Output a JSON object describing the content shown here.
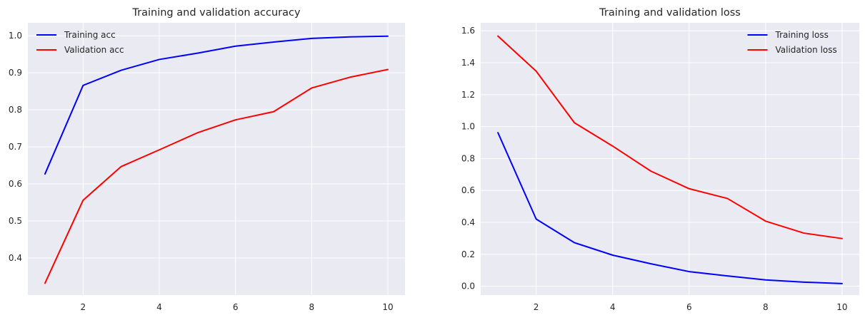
{
  "chart_data": [
    {
      "type": "line",
      "title": "Training and validation accuracy",
      "xlabel": "",
      "ylabel": "",
      "x": [
        1,
        2,
        3,
        4,
        5,
        6,
        7,
        8,
        9,
        10
      ],
      "xlim": [
        0.55,
        10.45
      ],
      "ylim": [
        0.3,
        1.035
      ],
      "xticks": [
        2,
        4,
        6,
        8,
        10
      ],
      "yticks": [
        0.4,
        0.5,
        0.6,
        0.7,
        0.8,
        0.9,
        1.0
      ],
      "ytick_labels": [
        "0.4",
        "0.5",
        "0.6",
        "0.7",
        "0.8",
        "0.9",
        "1.0"
      ],
      "grid": true,
      "legend_position": "top-left",
      "series": [
        {
          "name": "Training acc",
          "color": "#0000ff",
          "values": [
            0.627,
            0.866,
            0.907,
            0.936,
            0.953,
            0.972,
            0.983,
            0.993,
            0.997,
            0.999
          ]
        },
        {
          "name": "Validation acc",
          "color": "#ff0000",
          "values": [
            0.332,
            0.556,
            0.647,
            0.692,
            0.738,
            0.773,
            0.795,
            0.859,
            0.888,
            0.909
          ]
        }
      ]
    },
    {
      "type": "line",
      "title": "Training and validation loss",
      "xlabel": "",
      "ylabel": "",
      "x": [
        1,
        2,
        3,
        4,
        5,
        6,
        7,
        8,
        9,
        10
      ],
      "xlim": [
        0.55,
        10.45
      ],
      "ylim": [
        -0.055,
        1.65
      ],
      "xticks": [
        2,
        4,
        6,
        8,
        10
      ],
      "yticks": [
        0.0,
        0.2,
        0.4,
        0.6,
        0.8,
        1.0,
        1.2,
        1.4,
        1.6
      ],
      "ytick_labels": [
        "0.0",
        "0.2",
        "0.4",
        "0.6",
        "0.8",
        "1.0",
        "1.2",
        "1.4",
        "1.6"
      ],
      "grid": true,
      "legend_position": "top-right",
      "series": [
        {
          "name": "Training loss",
          "color": "#0000ff",
          "values": [
            0.962,
            0.421,
            0.273,
            0.195,
            0.141,
            0.092,
            0.065,
            0.04,
            0.026,
            0.017
          ]
        },
        {
          "name": "Validation loss",
          "color": "#ff0000",
          "values": [
            1.567,
            1.347,
            1.024,
            0.878,
            0.721,
            0.611,
            0.55,
            0.408,
            0.333,
            0.299
          ]
        }
      ]
    }
  ],
  "style": {
    "axes_background": "#eaeaf2",
    "grid_color": "#ffffff",
    "text_color": "#262626"
  }
}
